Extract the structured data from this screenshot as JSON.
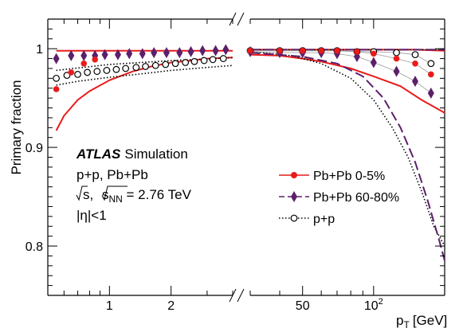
{
  "chart_data": {
    "type": "scatter",
    "ylabel": "Primary fraction",
    "xlabel": "p_T [GeV]",
    "xlabel_main": "p",
    "xlabel_sub": "T",
    "xlabel_unit": "[GeV]",
    "xscale": "log",
    "ylim": [
      0.75,
      1.03
    ],
    "y_ticks": [
      0.8,
      0.9,
      1
    ],
    "y_tick_labels": [
      "0.8",
      "0.9",
      "1"
    ],
    "x_ticks_left": [
      1,
      2
    ],
    "x_tick_labels_left": [
      "1",
      "2"
    ],
    "x_ticks_right": [
      50,
      100
    ],
    "x_tick_labels_right": [
      "50",
      "10"
    ],
    "x_tick_exponent_right": "2",
    "x_range_left": [
      0.5,
      4.0
    ],
    "x_range_right": [
      30,
      200
    ],
    "broken_axis": true,
    "grid": false,
    "legend_position": "right-middle",
    "annotations": {
      "experiment": "ATLAS",
      "label": "Simulation",
      "systems": "p+p, Pb+Pb",
      "energy_pre": "s, ",
      "energy_sub": "NN",
      "energy_post": " = 2.76 TeV",
      "eta": "|η|<1"
    },
    "series": [
      {
        "name": "Pb+Pb 0-5%",
        "color": "#e81b1b",
        "marker": "filled-circle",
        "line": "solid",
        "x_left": [
          0.55,
          0.65,
          0.75,
          0.85
        ],
        "y_left": [
          0.959,
          0.976,
          0.985,
          0.989
        ],
        "x_right": [
          30,
          40,
          50,
          60,
          70,
          85,
          100,
          125,
          150,
          175
        ],
        "y_right": [
          0.998,
          0.998,
          0.998,
          0.998,
          0.998,
          0.997,
          0.995,
          0.99,
          0.985,
          0.974
        ],
        "band_upper_left_x": [
          0.55,
          0.8,
          1.0,
          1.5,
          2.0,
          3.0,
          4.0
        ],
        "band_upper_left_y": [
          0.998,
          0.998,
          0.998,
          0.998,
          0.998,
          0.998,
          0.998
        ],
        "band_lower_left_x": [
          0.55,
          0.6,
          0.7,
          0.8,
          1.0,
          1.3,
          1.6,
          2.0,
          2.5,
          3.0,
          4.0
        ],
        "band_lower_left_y": [
          0.917,
          0.932,
          0.948,
          0.957,
          0.968,
          0.977,
          0.982,
          0.986,
          0.988,
          0.99,
          0.991
        ],
        "band_upper_right_x": [
          30,
          60,
          100,
          150,
          200
        ],
        "band_upper_right_y": [
          0.999,
          0.999,
          0.999,
          0.999,
          0.998
        ],
        "band_lower_right_x": [
          30,
          40,
          50,
          60,
          80,
          100,
          130,
          160,
          200
        ],
        "band_lower_right_y": [
          0.994,
          0.993,
          0.99,
          0.987,
          0.98,
          0.972,
          0.962,
          0.948,
          0.935
        ]
      },
      {
        "name": "Pb+Pb 60-80%",
        "color": "#5c1f6b",
        "marker": "filled-diamond",
        "line": "dashed",
        "x_left": [
          0.55,
          0.65,
          0.75,
          0.85,
          0.95,
          1.1,
          1.25,
          1.45,
          1.65,
          1.9,
          2.2,
          2.5,
          2.85,
          3.3,
          3.7
        ],
        "y_left": [
          0.99,
          0.993,
          0.993,
          0.993,
          0.994,
          0.994,
          0.995,
          0.995,
          0.996,
          0.996,
          0.996,
          0.997,
          0.998,
          0.998,
          0.999
        ],
        "x_right": [
          30,
          40,
          50,
          60,
          70,
          85,
          100,
          125,
          150,
          175
        ],
        "y_right": [
          0.997,
          0.996,
          0.996,
          0.996,
          0.995,
          0.992,
          0.986,
          0.977,
          0.967,
          0.955
        ],
        "dash_upper_x": [
          30,
          60,
          100,
          150,
          200
        ],
        "dash_upper_y": [
          0.999,
          0.999,
          0.999,
          0.999,
          0.999
        ],
        "dash_lower_x": [
          30,
          50,
          70,
          90,
          110,
          130,
          150,
          170,
          190,
          200
        ],
        "dash_lower_y": [
          0.996,
          0.992,
          0.985,
          0.972,
          0.95,
          0.92,
          0.885,
          0.845,
          0.805,
          0.785
        ]
      },
      {
        "name": "p+p",
        "color": "#000000",
        "marker": "open-circle",
        "line": "dotted",
        "x_left": [
          0.55,
          0.62,
          0.7,
          0.78,
          0.87,
          0.97,
          1.08,
          1.2,
          1.35,
          1.5,
          1.68,
          1.88,
          2.1,
          2.35,
          2.6,
          2.9,
          3.2,
          3.6
        ],
        "y_left": [
          0.97,
          0.973,
          0.974,
          0.976,
          0.977,
          0.978,
          0.979,
          0.98,
          0.981,
          0.982,
          0.983,
          0.984,
          0.985,
          0.986,
          0.987,
          0.988,
          0.989,
          0.99
        ],
        "x_right": [
          30,
          40,
          50,
          60,
          70,
          85,
          100,
          125,
          150,
          175
        ],
        "y_right": [
          0.998,
          0.998,
          0.998,
          0.998,
          0.998,
          0.997,
          0.997,
          0.996,
          0.994,
          0.985
        ],
        "dot_upper_left_x": [
          0.55,
          1.0,
          2.0,
          4.0
        ],
        "dot_upper_left_y": [
          0.978,
          0.984,
          0.988,
          0.991
        ],
        "dot_lower_left_x": [
          0.55,
          0.7,
          1.0,
          1.5,
          2.0,
          3.0,
          4.0
        ],
        "dot_lower_left_y": [
          0.963,
          0.967,
          0.971,
          0.975,
          0.978,
          0.981,
          0.983
        ],
        "dot_upper_right_x": [
          30,
          60,
          100,
          150,
          200
        ],
        "dot_upper_right_y": [
          0.999,
          0.999,
          0.999,
          0.999,
          0.999
        ],
        "dot_lower_right_x": [
          30,
          45,
          60,
          80,
          100,
          120,
          140,
          160,
          180,
          200
        ],
        "dot_lower_right_y": [
          0.997,
          0.993,
          0.985,
          0.97,
          0.948,
          0.92,
          0.89,
          0.855,
          0.82,
          0.8
        ]
      }
    ]
  }
}
